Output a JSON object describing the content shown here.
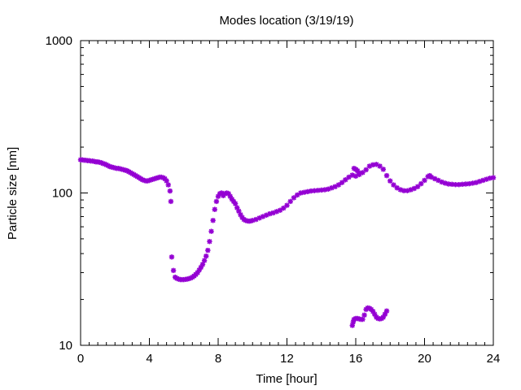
{
  "chart_data": {
    "type": "scatter",
    "title": "Modes location (3/19/19)",
    "xlabel": "Time [hour]",
    "ylabel": "Particle size [nm]",
    "xlim": [
      0,
      24
    ],
    "ylim": [
      10,
      1000
    ],
    "yscale": "log",
    "grid": false,
    "legend": "none",
    "marker": "asterisk",
    "colors": {
      "series": "#9400d3",
      "axis": "#000000",
      "background": "#ffffff"
    },
    "x_ticks": [
      {
        "value": 0,
        "label": "0"
      },
      {
        "value": 4,
        "label": "4"
      },
      {
        "value": 8,
        "label": "8"
      },
      {
        "value": 12,
        "label": "12"
      },
      {
        "value": 16,
        "label": "16"
      },
      {
        "value": 20,
        "label": "20"
      },
      {
        "value": 24,
        "label": "24"
      }
    ],
    "y_ticks": [
      {
        "value": 10,
        "label": "10"
      },
      {
        "value": 100,
        "label": "100"
      },
      {
        "value": 1000,
        "label": "1000"
      }
    ],
    "series": [
      {
        "points": [
          [
            0.0,
            165
          ],
          [
            0.1,
            165
          ],
          [
            0.2,
            164
          ],
          [
            0.3,
            164
          ],
          [
            0.4,
            163
          ],
          [
            0.5,
            163
          ],
          [
            0.6,
            162
          ],
          [
            0.7,
            162
          ],
          [
            0.8,
            161
          ],
          [
            0.9,
            160
          ],
          [
            1.0,
            160
          ],
          [
            1.1,
            159
          ],
          [
            1.2,
            158
          ],
          [
            1.3,
            156
          ],
          [
            1.4,
            155
          ],
          [
            1.5,
            153
          ],
          [
            1.6,
            151
          ],
          [
            1.7,
            149
          ],
          [
            1.8,
            148
          ],
          [
            1.9,
            147
          ],
          [
            2.0,
            146
          ],
          [
            2.1,
            145
          ],
          [
            2.2,
            145
          ],
          [
            2.3,
            144
          ],
          [
            2.4,
            143
          ],
          [
            2.5,
            142
          ],
          [
            2.6,
            141
          ],
          [
            2.7,
            140
          ],
          [
            2.8,
            138
          ],
          [
            2.9,
            136
          ],
          [
            3.0,
            134
          ],
          [
            3.1,
            132
          ],
          [
            3.2,
            130
          ],
          [
            3.3,
            128
          ],
          [
            3.4,
            126
          ],
          [
            3.5,
            124
          ],
          [
            3.6,
            122
          ],
          [
            3.7,
            121
          ],
          [
            3.8,
            120
          ],
          [
            3.9,
            120
          ],
          [
            4.0,
            121
          ],
          [
            4.1,
            122
          ],
          [
            4.2,
            123
          ],
          [
            4.3,
            124
          ],
          [
            4.4,
            125
          ],
          [
            4.5,
            126
          ],
          [
            4.6,
            127
          ],
          [
            4.7,
            127
          ],
          [
            4.8,
            126
          ],
          [
            4.9,
            124
          ],
          [
            5.0,
            120
          ],
          [
            5.1,
            113
          ],
          [
            5.2,
            103
          ],
          [
            5.25,
            88
          ],
          [
            5.3,
            38
          ],
          [
            5.4,
            31
          ],
          [
            5.5,
            28
          ],
          [
            5.6,
            27.5
          ],
          [
            5.7,
            27.2
          ],
          [
            5.8,
            27
          ],
          [
            5.9,
            27
          ],
          [
            6.0,
            27
          ],
          [
            6.1,
            27.1
          ],
          [
            6.2,
            27.2
          ],
          [
            6.3,
            27.4
          ],
          [
            6.4,
            27.6
          ],
          [
            6.5,
            28
          ],
          [
            6.6,
            28.5
          ],
          [
            6.7,
            29.2
          ],
          [
            6.8,
            30
          ],
          [
            6.9,
            31.2
          ],
          [
            7.0,
            32.5
          ],
          [
            7.1,
            34
          ],
          [
            7.2,
            36
          ],
          [
            7.3,
            38.5
          ],
          [
            7.4,
            42
          ],
          [
            7.5,
            48
          ],
          [
            7.6,
            56
          ],
          [
            7.7,
            66
          ],
          [
            7.8,
            78
          ],
          [
            7.9,
            88
          ],
          [
            8.0,
            95
          ],
          [
            8.1,
            99
          ],
          [
            8.2,
            100
          ],
          [
            8.3,
            96
          ],
          [
            8.4,
            99
          ],
          [
            8.5,
            100
          ],
          [
            8.6,
            99
          ],
          [
            8.7,
            95
          ],
          [
            8.8,
            91
          ],
          [
            8.9,
            88
          ],
          [
            9.0,
            85
          ],
          [
            9.1,
            80
          ],
          [
            9.2,
            76
          ],
          [
            9.3,
            72
          ],
          [
            9.4,
            69
          ],
          [
            9.5,
            67
          ],
          [
            9.6,
            66
          ],
          [
            9.7,
            65.5
          ],
          [
            9.8,
            65.3
          ],
          [
            9.9,
            65.5
          ],
          [
            10.0,
            66
          ],
          [
            10.2,
            67
          ],
          [
            10.4,
            68.5
          ],
          [
            10.6,
            70
          ],
          [
            10.8,
            71.5
          ],
          [
            11.0,
            73
          ],
          [
            11.2,
            74
          ],
          [
            11.4,
            75.5
          ],
          [
            11.6,
            77
          ],
          [
            11.8,
            79.5
          ],
          [
            12.0,
            83
          ],
          [
            12.2,
            88
          ],
          [
            12.4,
            93
          ],
          [
            12.6,
            97
          ],
          [
            12.8,
            100
          ],
          [
            13.0,
            101
          ],
          [
            13.2,
            102
          ],
          [
            13.4,
            103
          ],
          [
            13.6,
            103.5
          ],
          [
            13.8,
            104
          ],
          [
            14.0,
            104.5
          ],
          [
            14.2,
            105
          ],
          [
            14.4,
            106
          ],
          [
            14.6,
            108
          ],
          [
            14.8,
            110
          ],
          [
            15.0,
            113
          ],
          [
            15.2,
            117
          ],
          [
            15.4,
            122
          ],
          [
            15.6,
            127
          ],
          [
            15.8,
            131
          ],
          [
            16.0,
            129
          ],
          [
            16.2,
            132
          ],
          [
            16.4,
            136
          ],
          [
            16.6,
            142
          ],
          [
            16.8,
            150
          ],
          [
            17.0,
            153
          ],
          [
            17.2,
            154
          ],
          [
            17.4,
            150
          ],
          [
            17.6,
            143
          ],
          [
            17.8,
            130
          ],
          [
            18.0,
            120
          ],
          [
            18.2,
            113
          ],
          [
            18.4,
            108
          ],
          [
            18.6,
            105
          ],
          [
            18.8,
            103.5
          ],
          [
            19.0,
            103.5
          ],
          [
            19.2,
            105
          ],
          [
            19.4,
            107
          ],
          [
            19.6,
            110
          ],
          [
            19.8,
            115
          ],
          [
            20.0,
            121
          ],
          [
            20.2,
            128
          ],
          [
            20.3,
            130
          ],
          [
            20.4,
            127
          ],
          [
            20.6,
            124
          ],
          [
            20.8,
            121
          ],
          [
            21.0,
            118
          ],
          [
            21.2,
            116
          ],
          [
            21.4,
            114.5
          ],
          [
            21.6,
            114
          ],
          [
            21.8,
            113.5
          ],
          [
            22.0,
            113.5
          ],
          [
            22.2,
            114
          ],
          [
            22.4,
            114.5
          ],
          [
            22.6,
            115
          ],
          [
            22.8,
            116
          ],
          [
            23.0,
            117
          ],
          [
            23.2,
            119
          ],
          [
            23.4,
            121
          ],
          [
            23.6,
            123
          ],
          [
            23.8,
            125
          ],
          [
            24.0,
            126
          ],
          [
            15.9,
            145
          ],
          [
            16.0,
            143
          ],
          [
            16.1,
            140
          ],
          [
            16.2,
            135
          ],
          [
            15.8,
            13.5
          ],
          [
            15.85,
            14.2
          ],
          [
            15.9,
            14.8
          ],
          [
            16.0,
            15
          ],
          [
            16.1,
            15
          ],
          [
            16.2,
            14.9
          ],
          [
            16.3,
            14.8
          ],
          [
            16.4,
            14.8
          ],
          [
            16.5,
            15.8
          ],
          [
            16.6,
            17.2
          ],
          [
            16.7,
            17.6
          ],
          [
            16.8,
            17.5
          ],
          [
            16.9,
            17.2
          ],
          [
            17.0,
            16.7
          ],
          [
            17.1,
            16
          ],
          [
            17.2,
            15.3
          ],
          [
            17.3,
            15
          ],
          [
            17.4,
            14.9
          ],
          [
            17.5,
            15
          ],
          [
            17.6,
            15.3
          ],
          [
            17.7,
            16
          ],
          [
            17.8,
            16.8
          ]
        ]
      }
    ]
  }
}
